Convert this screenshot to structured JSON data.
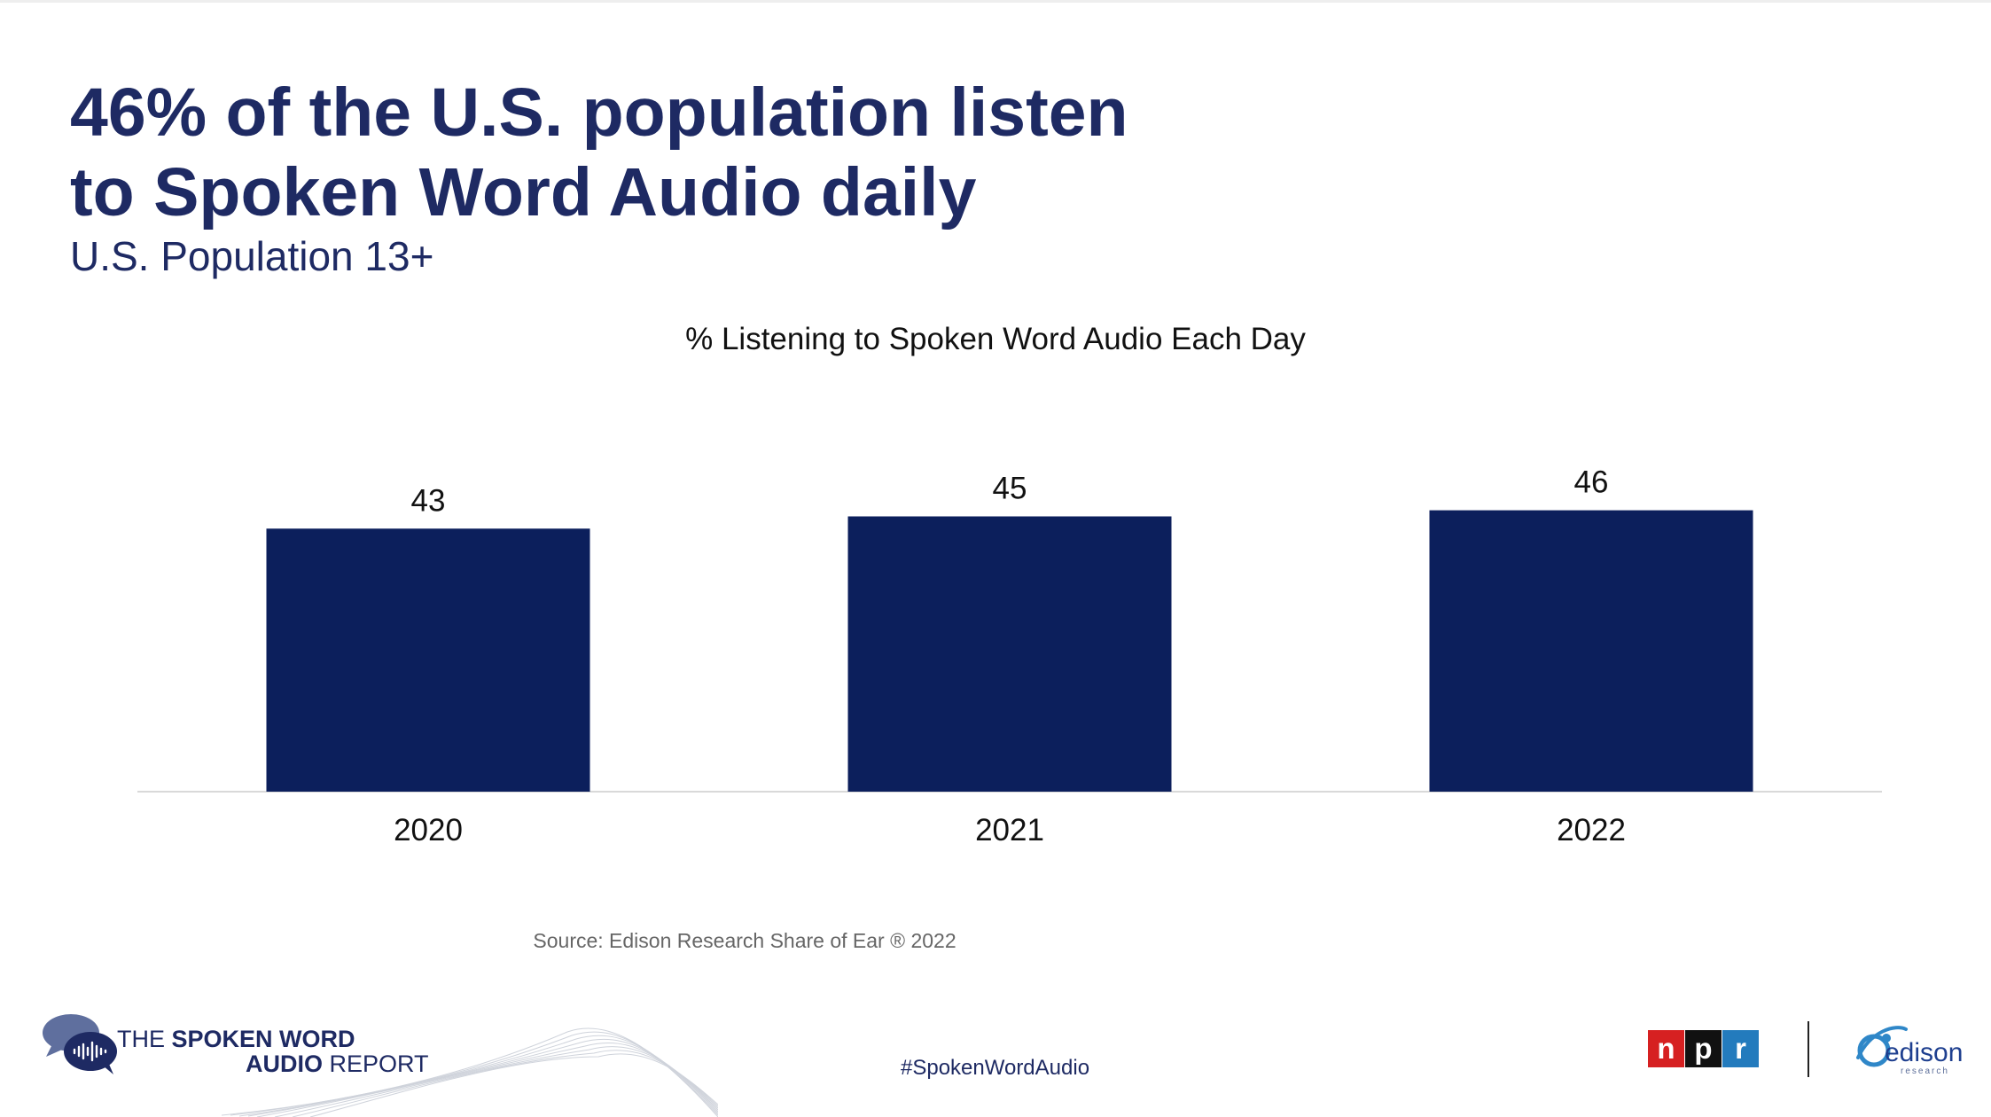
{
  "slide": {
    "headline_line1": "46% of the U.S. population listen",
    "headline_line2": "to Spoken Word Audio daily",
    "subtitle": "U.S. Population 13+",
    "source": "Source: Edison Research Share of Ear ® 2022",
    "hashtag": "#SpokenWordAudio"
  },
  "branding": {
    "report_line1_light": "THE ",
    "report_line1_bold": "SPOKEN WORD",
    "report_line2_bold": "AUDIO",
    "report_line2_light": " REPORT",
    "npr_letters": [
      "n",
      "p",
      "r"
    ],
    "edison_word": "edison",
    "edison_sub": "research"
  },
  "colors": {
    "bar": "#0c1f5c",
    "headline": "#1e2a63",
    "axis_line": "#d9d9d9",
    "npr_red": "#d62021",
    "npr_black": "#111111",
    "npr_blue": "#237bbd"
  },
  "icons": {
    "report_logo": "speech-bubbles-soundwave-icon",
    "edison_logo": "edison-orbit-icon"
  },
  "chart_data": {
    "type": "bar",
    "title": "% Listening to Spoken Word Audio Each Day",
    "categories": [
      "2020",
      "2021",
      "2022"
    ],
    "values": [
      43,
      45,
      46
    ],
    "xlabel": "",
    "ylabel": "",
    "ylim": [
      0,
      50
    ],
    "grid": false,
    "legend": "none",
    "data_labels": true
  }
}
